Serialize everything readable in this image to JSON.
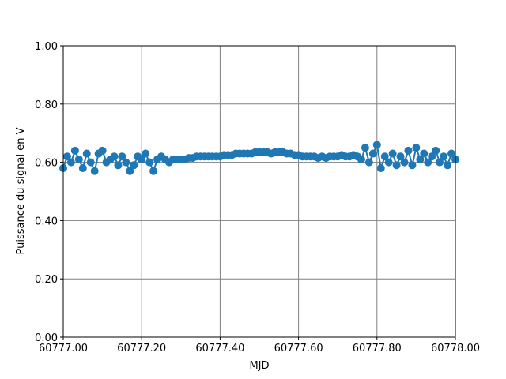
{
  "chart_data": {
    "type": "scatter",
    "xlabel": "MJD",
    "ylabel": "Puissance du signal en V",
    "color": "#1f77b4",
    "grid": true,
    "grid_color": "#808080",
    "xlim": [
      60777.0,
      60778.0
    ],
    "xticks": [
      {
        "value": 60777.0,
        "label": "60777.00"
      },
      {
        "value": 60777.2,
        "label": "60777.20"
      },
      {
        "value": 60777.4,
        "label": "60777.40"
      },
      {
        "value": 60777.6,
        "label": "60777.60"
      },
      {
        "value": 60777.8,
        "label": "60777.80"
      },
      {
        "value": 60778.0,
        "label": "60778.00"
      }
    ],
    "ylim": [
      0,
      1
    ],
    "yticks": [
      {
        "value": 0,
        "label": "0.00"
      },
      {
        "value": 0.2,
        "label": "0.20"
      },
      {
        "value": 0.4,
        "label": "0.40"
      },
      {
        "value": 0.6,
        "label": "0.60"
      },
      {
        "value": 0.8,
        "label": "0.80"
      },
      {
        "value": 1,
        "label": "1.00"
      }
    ],
    "x": [
      60777.0,
      60777.01,
      60777.02,
      60777.03,
      60777.04,
      60777.05,
      60777.06,
      60777.07,
      60777.08,
      60777.09,
      60777.1,
      60777.11,
      60777.12,
      60777.13,
      60777.14,
      60777.15,
      60777.16,
      60777.17,
      60777.18,
      60777.19,
      60777.2,
      60777.21,
      60777.22,
      60777.23,
      60777.24,
      60777.25,
      60777.26,
      60777.27,
      60777.28,
      60777.29,
      60777.3,
      60777.31,
      60777.32,
      60777.33,
      60777.34,
      60777.35,
      60777.36,
      60777.37,
      60777.38,
      60777.39,
      60777.4,
      60777.41,
      60777.42,
      60777.43,
      60777.44,
      60777.45,
      60777.46,
      60777.47,
      60777.48,
      60777.49,
      60777.5,
      60777.51,
      60777.52,
      60777.53,
      60777.54,
      60777.55,
      60777.56,
      60777.57,
      60777.58,
      60777.59,
      60777.6,
      60777.61,
      60777.62,
      60777.63,
      60777.64,
      60777.65,
      60777.66,
      60777.67,
      60777.68,
      60777.69,
      60777.7,
      60777.71,
      60777.72,
      60777.73,
      60777.74,
      60777.75,
      60777.76,
      60777.77,
      60777.78,
      60777.79,
      60777.8,
      60777.81,
      60777.82,
      60777.83,
      60777.84,
      60777.85,
      60777.86,
      60777.87,
      60777.88,
      60777.89,
      60777.9,
      60777.91,
      60777.92,
      60777.93,
      60777.94,
      60777.95,
      60777.96,
      60777.97,
      60777.98,
      60777.99,
      60778.0
    ],
    "values": [
      0.58,
      0.62,
      0.6,
      0.64,
      0.61,
      0.58,
      0.63,
      0.6,
      0.57,
      0.63,
      0.64,
      0.6,
      0.61,
      0.62,
      0.59,
      0.62,
      0.6,
      0.57,
      0.59,
      0.62,
      0.61,
      0.63,
      0.6,
      0.57,
      0.61,
      0.62,
      0.61,
      0.6,
      0.61,
      0.61,
      0.61,
      0.61,
      0.615,
      0.615,
      0.62,
      0.62,
      0.62,
      0.62,
      0.62,
      0.62,
      0.62,
      0.625,
      0.625,
      0.625,
      0.63,
      0.63,
      0.63,
      0.63,
      0.63,
      0.635,
      0.635,
      0.635,
      0.635,
      0.63,
      0.635,
      0.635,
      0.635,
      0.63,
      0.63,
      0.625,
      0.625,
      0.62,
      0.62,
      0.62,
      0.62,
      0.615,
      0.62,
      0.615,
      0.62,
      0.62,
      0.62,
      0.625,
      0.62,
      0.62,
      0.625,
      0.62,
      0.61,
      0.65,
      0.6,
      0.63,
      0.66,
      0.58,
      0.62,
      0.6,
      0.63,
      0.59,
      0.62,
      0.6,
      0.64,
      0.59,
      0.65,
      0.61,
      0.63,
      0.6,
      0.62,
      0.64,
      0.6,
      0.62,
      0.59,
      0.63,
      0.61
    ]
  }
}
